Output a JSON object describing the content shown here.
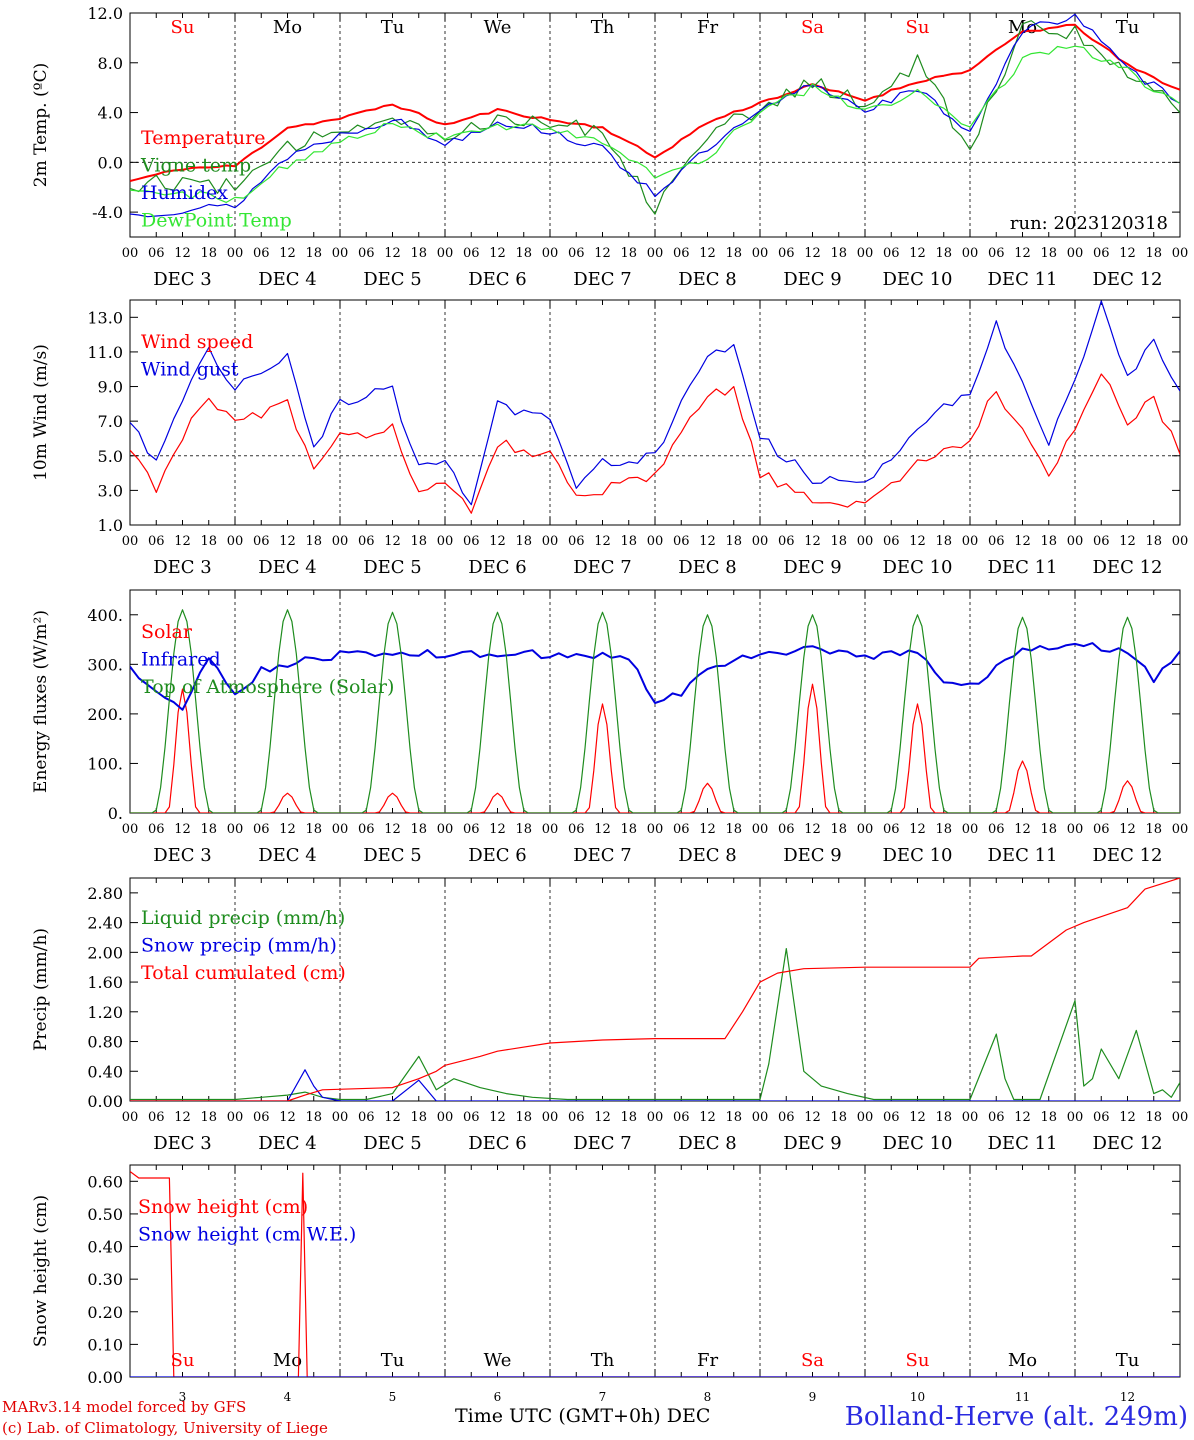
{
  "meta": {
    "run_label": "run: 2023120318",
    "model_credit": "MARv3.14 model forced by GFS",
    "lab_credit": "(c) Lab. of Climatology, University of Liege",
    "x_title": "Time UTC (GMT+0h) DEC",
    "station": "Bolland-Herve (alt. 249m)"
  },
  "weekdays": [
    {
      "label": "Su",
      "weekend": true
    },
    {
      "label": "Mo",
      "weekend": false
    },
    {
      "label": "Tu",
      "weekend": false
    },
    {
      "label": "We",
      "weekend": false
    },
    {
      "label": "Th",
      "weekend": false
    },
    {
      "label": "Fr",
      "weekend": false
    },
    {
      "label": "Sa",
      "weekend": true
    },
    {
      "label": "Su",
      "weekend": true
    },
    {
      "label": "Mo",
      "weekend": false
    },
    {
      "label": "Tu",
      "weekend": false
    }
  ],
  "day_labels": [
    "DEC  3",
    "DEC  4",
    "DEC  5",
    "DEC  6",
    "DEC  7",
    "DEC  8",
    "DEC  9",
    "DEC 10",
    "DEC 11",
    "DEC 12"
  ],
  "hour_ticks": [
    "00",
    "06",
    "12",
    "18"
  ],
  "last_tick": "00",
  "bottom_day_numbers": [
    "3",
    "4",
    "5",
    "6",
    "7",
    "8",
    "9",
    "10",
    "11",
    "12"
  ],
  "colors": {
    "red": "#ff0000",
    "green": "#1e8c1e",
    "blue": "#0000e0",
    "lightgreen": "#33e633"
  },
  "chart_data": [
    {
      "type": "line",
      "ylabel": "2m Temp. (ºC)",
      "ylim": [
        -6,
        12
      ],
      "yticks": [
        "-4.0",
        "0.0",
        "4.0",
        "8.0",
        "12.0"
      ],
      "ytick_values": [
        -4,
        0,
        4,
        8,
        12
      ],
      "dashed_h": 0,
      "series": [
        {
          "name": "Temperature",
          "color": "#ff0000",
          "x": [
            0,
            12,
            24,
            36,
            48,
            60,
            72,
            84,
            96,
            108,
            120,
            132,
            144,
            156,
            168,
            180,
            192,
            204,
            216,
            228,
            240
          ],
          "values": [
            -1.5,
            -0.5,
            -0.3,
            2.8,
            3.5,
            4.7,
            3.0,
            4.2,
            3.4,
            2.8,
            0.4,
            3.2,
            4.8,
            6.2,
            5.0,
            6.5,
            7.4,
            10.5,
            11.0,
            7.8,
            5.8
          ]
        },
        {
          "name": "Vigne temp",
          "color": "#1e8c1e",
          "x": [
            0,
            12,
            24,
            36,
            48,
            60,
            72,
            84,
            96,
            108,
            120,
            132,
            144,
            156,
            168,
            180,
            192,
            204,
            216,
            228,
            240
          ],
          "values": [
            -1.8,
            -1.5,
            -2.0,
            1.0,
            2.8,
            3.8,
            2.0,
            3.7,
            3.3,
            2.5,
            -3.5,
            2.5,
            4.0,
            6.5,
            4.5,
            8.0,
            1.0,
            11.0,
            10.5,
            7.2,
            4.5
          ]
        },
        {
          "name": "Humidex",
          "color": "#0000e0",
          "x": [
            0,
            12,
            24,
            36,
            48,
            60,
            72,
            84,
            96,
            108,
            120,
            132,
            144,
            156,
            168,
            180,
            192,
            204,
            216,
            228,
            240
          ],
          "values": [
            -4.2,
            -3.8,
            -3.5,
            0.5,
            2.2,
            3.5,
            1.5,
            3.3,
            2.5,
            1.0,
            -2.5,
            1.0,
            4.0,
            6.3,
            4.3,
            5.8,
            2.5,
            10.5,
            11.9,
            7.4,
            5.0
          ]
        },
        {
          "name": "DewPoint Temp",
          "color": "#33e633",
          "x": [
            0,
            12,
            24,
            36,
            48,
            60,
            72,
            84,
            96,
            108,
            120,
            132,
            144,
            156,
            168,
            180,
            192,
            204,
            216,
            228,
            240
          ],
          "values": [
            -2.2,
            -2.5,
            -3.0,
            -0.2,
            1.5,
            3.3,
            1.8,
            3.0,
            2.8,
            1.8,
            -1.2,
            0.3,
            4.2,
            6.0,
            4.0,
            5.6,
            3.0,
            8.3,
            9.3,
            7.3,
            4.5
          ]
        }
      ]
    },
    {
      "type": "line",
      "ylabel": "10m Wind (m/s)",
      "ylim": [
        1,
        14
      ],
      "yticks": [
        "1.0",
        "3.0",
        "5.0",
        "7.0",
        "9.0",
        "11.0",
        "13.0"
      ],
      "ytick_values": [
        1,
        3,
        5,
        7,
        9,
        11,
        13
      ],
      "dashed_h": 5,
      "series": [
        {
          "name": "Wind speed",
          "color": "#ff0000",
          "x": [
            0,
            6,
            12,
            18,
            24,
            36,
            42,
            48,
            60,
            66,
            72,
            78,
            84,
            96,
            102,
            108,
            120,
            132,
            138,
            144,
            156,
            168,
            180,
            186,
            192,
            198,
            204,
            210,
            216,
            222,
            228,
            234,
            240
          ],
          "values": [
            5.2,
            3.2,
            6.2,
            8.2,
            7.0,
            8.0,
            4.0,
            6.0,
            6.7,
            2.8,
            3.2,
            1.8,
            5.8,
            5.0,
            2.5,
            3.0,
            3.8,
            8.5,
            8.8,
            4.0,
            2.3,
            2.3,
            4.5,
            5.2,
            6.0,
            8.8,
            6.5,
            4.1,
            6.5,
            9.8,
            6.8,
            8.3,
            5.3
          ]
        },
        {
          "name": "Wind gust",
          "color": "#0000e0",
          "x": [
            0,
            6,
            12,
            18,
            24,
            36,
            42,
            48,
            60,
            66,
            72,
            78,
            84,
            96,
            102,
            108,
            120,
            132,
            138,
            144,
            156,
            168,
            180,
            186,
            192,
            198,
            204,
            210,
            216,
            222,
            228,
            234,
            240
          ],
          "values": [
            7.0,
            4.5,
            8.5,
            11.0,
            9.0,
            10.8,
            5.5,
            8.0,
            8.8,
            4.2,
            4.5,
            2.5,
            8.0,
            7.0,
            3.3,
            4.5,
            5.0,
            11.0,
            11.3,
            6.0,
            3.7,
            3.3,
            6.8,
            7.8,
            8.8,
            12.8,
            9.0,
            5.5,
            9.5,
            13.8,
            9.5,
            12.0,
            8.5
          ]
        }
      ]
    },
    {
      "type": "line",
      "ylabel": "Energy fluxes (W/m²)",
      "ylim": [
        0,
        450
      ],
      "yticks": [
        "0.",
        "100.",
        "200.",
        "300.",
        "400."
      ],
      "ytick_values": [
        0,
        100,
        200,
        300,
        400
      ],
      "series": [
        {
          "name": "Solar",
          "color": "#ff0000",
          "daily_peaks": [
            250,
            40,
            40,
            40,
            220,
            60,
            260,
            220,
            105,
            65
          ]
        },
        {
          "name": "Infrared",
          "color": "#0000e0",
          "x": [
            0,
            6,
            12,
            18,
            24,
            30,
            36,
            48,
            60,
            72,
            84,
            96,
            108,
            114,
            120,
            126,
            132,
            144,
            156,
            168,
            180,
            186,
            192,
            204,
            216,
            228,
            234,
            240
          ],
          "values": [
            300,
            240,
            215,
            310,
            235,
            290,
            300,
            320,
            320,
            322,
            322,
            320,
            320,
            310,
            228,
            240,
            290,
            322,
            330,
            315,
            330,
            260,
            255,
            330,
            345,
            325,
            270,
            325
          ]
        },
        {
          "name": "Top of Atmosphere (Solar)",
          "color": "#1e8c1e",
          "daily_peaks": [
            410,
            410,
            405,
            405,
            405,
            400,
            400,
            400,
            395,
            395
          ]
        }
      ]
    },
    {
      "type": "line",
      "ylabel": "Precip (mm/h)",
      "ylim": [
        0,
        3.0
      ],
      "yticks": [
        "0.00",
        "0.40",
        "0.80",
        "1.20",
        "1.60",
        "2.00",
        "2.40",
        "2.80"
      ],
      "ytick_values": [
        0,
        0.4,
        0.8,
        1.2,
        1.6,
        2.0,
        2.4,
        2.8
      ],
      "series": [
        {
          "name": "Liquid precip (mm/h)",
          "color": "#1e8c1e",
          "x": [
            0,
            24,
            30,
            36,
            40,
            44,
            48,
            54,
            60,
            66,
            70,
            74,
            80,
            86,
            92,
            100,
            108,
            120,
            132,
            144,
            146,
            150,
            154,
            158,
            164,
            170,
            180,
            192,
            198,
            200,
            202,
            204,
            206,
            208,
            216,
            218,
            220,
            222,
            226,
            230,
            234,
            236,
            238,
            240
          ],
          "values": [
            0.02,
            0.02,
            0.05,
            0.08,
            0.12,
            0.05,
            0.02,
            0.02,
            0.1,
            0.6,
            0.15,
            0.3,
            0.18,
            0.1,
            0.05,
            0.02,
            0.02,
            0.02,
            0.02,
            0.02,
            0.5,
            2.05,
            0.4,
            0.2,
            0.1,
            0.02,
            0.02,
            0.02,
            0.9,
            0.3,
            0.02,
            0.02,
            0.02,
            0.02,
            1.35,
            0.2,
            0.3,
            0.7,
            0.3,
            0.95,
            0.1,
            0.15,
            0.05,
            0.25
          ]
        },
        {
          "name": "Snow precip (mm/h)",
          "color": "#0000e0",
          "x": [
            0,
            36,
            40,
            42,
            44,
            48,
            60,
            66,
            70,
            240
          ],
          "values": [
            0,
            0,
            0.42,
            0.2,
            0.05,
            0,
            0,
            0.28,
            0,
            0
          ]
        },
        {
          "name": "Total cumulated (cm)",
          "color": "#ff0000",
          "x": [
            0,
            36,
            40,
            44,
            60,
            66,
            70,
            72,
            80,
            84,
            96,
            108,
            120,
            136,
            140,
            144,
            148,
            154,
            168,
            192,
            194,
            204,
            206,
            214,
            218,
            228,
            232,
            240
          ],
          "values": [
            0,
            0,
            0.08,
            0.15,
            0.18,
            0.3,
            0.4,
            0.48,
            0.6,
            0.67,
            0.78,
            0.82,
            0.84,
            0.84,
            1.2,
            1.6,
            1.72,
            1.78,
            1.8,
            1.8,
            1.92,
            1.95,
            1.95,
            2.3,
            2.4,
            2.6,
            2.85,
            3.0
          ]
        }
      ]
    },
    {
      "type": "line",
      "ylabel": "Snow height (cm)",
      "ylim": [
        0,
        0.65
      ],
      "yticks": [
        "0.00",
        "0.10",
        "0.20",
        "0.30",
        "0.40",
        "0.50",
        "0.60"
      ],
      "ytick_values": [
        0,
        0.1,
        0.2,
        0.3,
        0.4,
        0.5,
        0.6
      ],
      "series": [
        {
          "name": "Snow height (cm)",
          "color": "#ff0000",
          "x": [
            0,
            2,
            4,
            9,
            10,
            38.5,
            39.5,
            40.5,
            240
          ],
          "values": [
            0.63,
            0.61,
            0.61,
            0.61,
            0,
            0,
            0.625,
            0,
            0
          ]
        },
        {
          "name": "Snow height (cm W.E.)",
          "color": "#0000e0",
          "x": [
            0,
            240
          ],
          "values": [
            0,
            0
          ]
        }
      ]
    }
  ]
}
